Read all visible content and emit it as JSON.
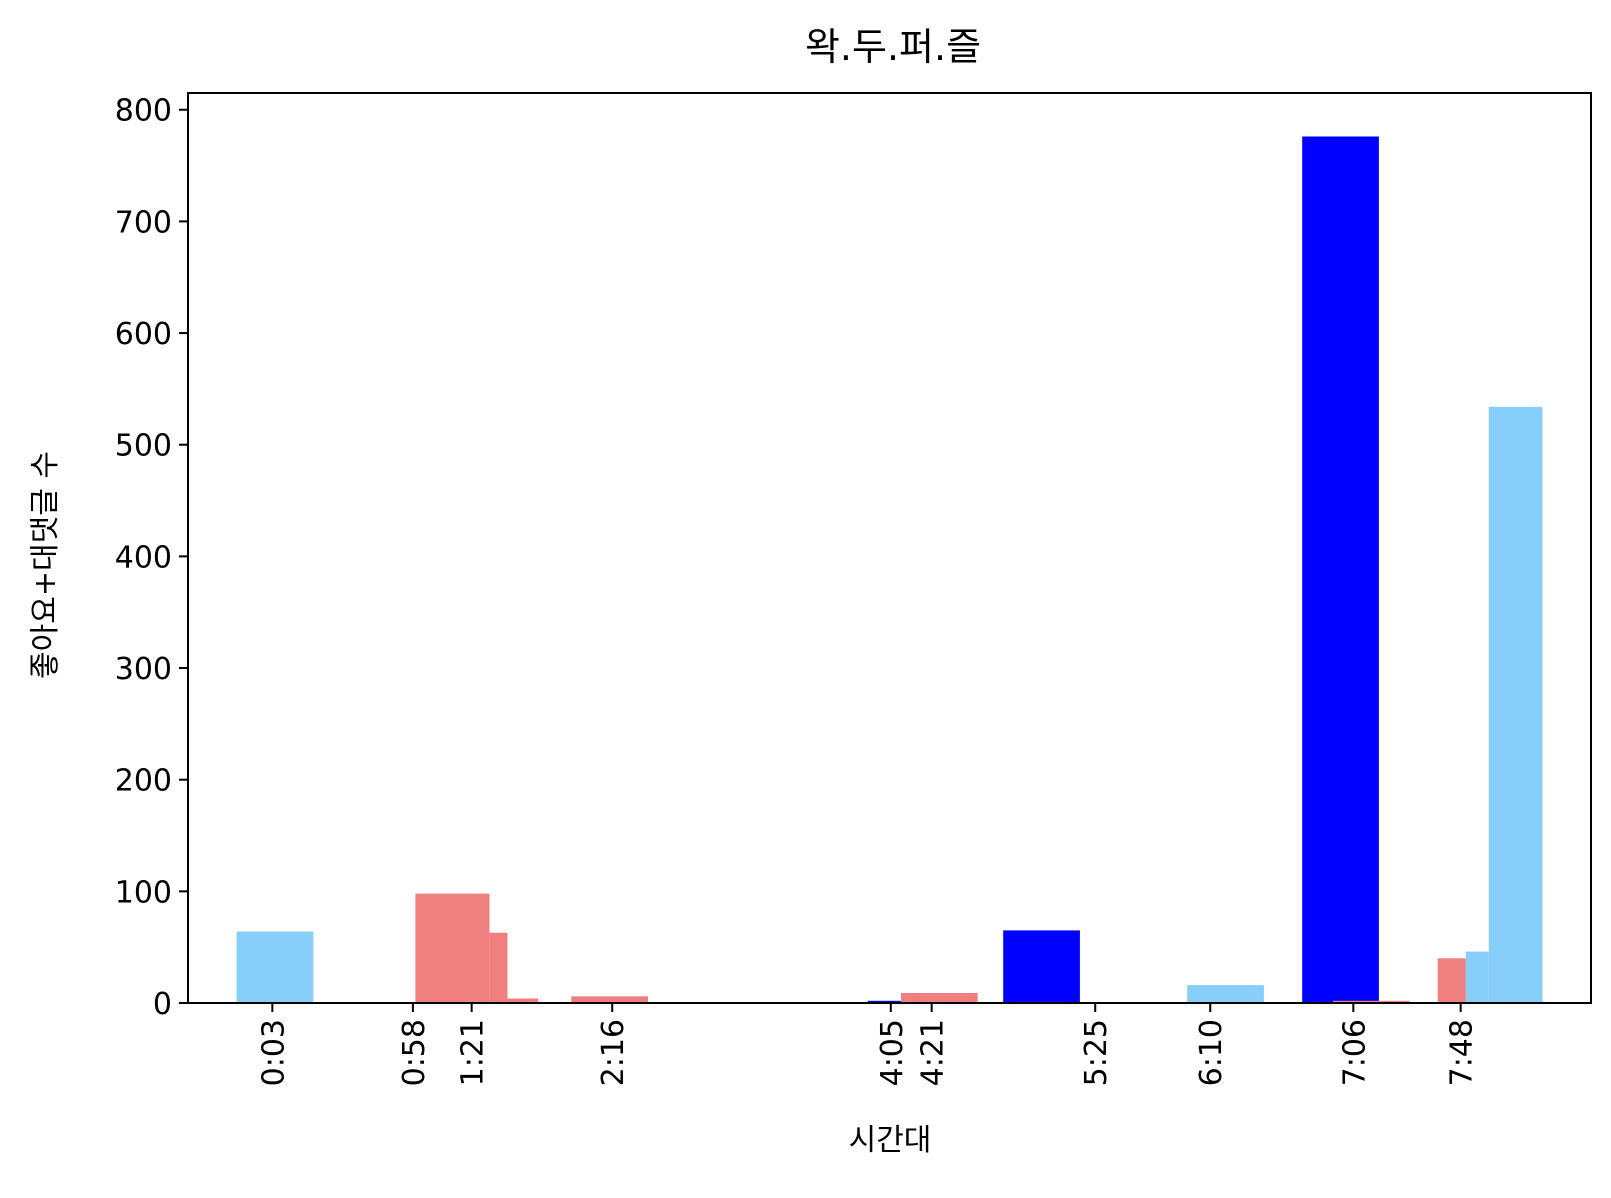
{
  "chart_data": {
    "type": "bar",
    "title": "왁.두.퍼.즐",
    "xlabel": "시간대",
    "ylabel": "좋아요+대댓글 수",
    "ylim": [
      0,
      815
    ],
    "xlim": [
      -30,
      519
    ],
    "grid": false,
    "x_unit": "seconds",
    "yticks": [
      0,
      100,
      200,
      300,
      400,
      500,
      600,
      700,
      800
    ],
    "xticks": [
      {
        "label": "0:03",
        "x": 3
      },
      {
        "label": "0:58",
        "x": 58
      },
      {
        "label": "1:21",
        "x": 81
      },
      {
        "label": "2:16",
        "x": 136
      },
      {
        "label": "4:05",
        "x": 245
      },
      {
        "label": "4:21",
        "x": 261
      },
      {
        "label": "5:25",
        "x": 325
      },
      {
        "label": "6:10",
        "x": 370
      },
      {
        "label": "7:06",
        "x": 426
      },
      {
        "label": "7:48",
        "x": 468
      }
    ],
    "colors": {
      "lightskyblue": "#87cefa",
      "lightcoral": "#f08080",
      "blue": "#0000ff"
    },
    "bars": [
      {
        "start": -11,
        "end": 19,
        "value": 64,
        "color": "lightskyblue"
      },
      {
        "start": 59,
        "end": 88,
        "value": 98,
        "color": "lightcoral"
      },
      {
        "start": 88,
        "end": 95,
        "value": 63,
        "color": "lightcoral"
      },
      {
        "start": 95,
        "end": 107,
        "value": 4,
        "color": "lightcoral"
      },
      {
        "start": 120,
        "end": 150,
        "value": 6,
        "color": "lightcoral"
      },
      {
        "start": 236,
        "end": 249,
        "value": 2,
        "color": "blue"
      },
      {
        "start": 249,
        "end": 279,
        "value": 9,
        "color": "lightcoral"
      },
      {
        "start": 289,
        "end": 319,
        "value": 65,
        "color": "blue"
      },
      {
        "start": 361,
        "end": 391,
        "value": 16,
        "color": "lightskyblue"
      },
      {
        "start": 406,
        "end": 436,
        "value": 776,
        "color": "blue"
      },
      {
        "start": 418,
        "end": 448,
        "value": 2,
        "color": "lightcoral"
      },
      {
        "start": 459,
        "end": 470,
        "value": 40,
        "color": "lightcoral"
      },
      {
        "start": 470,
        "end": 479,
        "value": 46,
        "color": "lightskyblue"
      },
      {
        "start": 479,
        "end": 500,
        "value": 534,
        "color": "lightskyblue"
      }
    ]
  }
}
